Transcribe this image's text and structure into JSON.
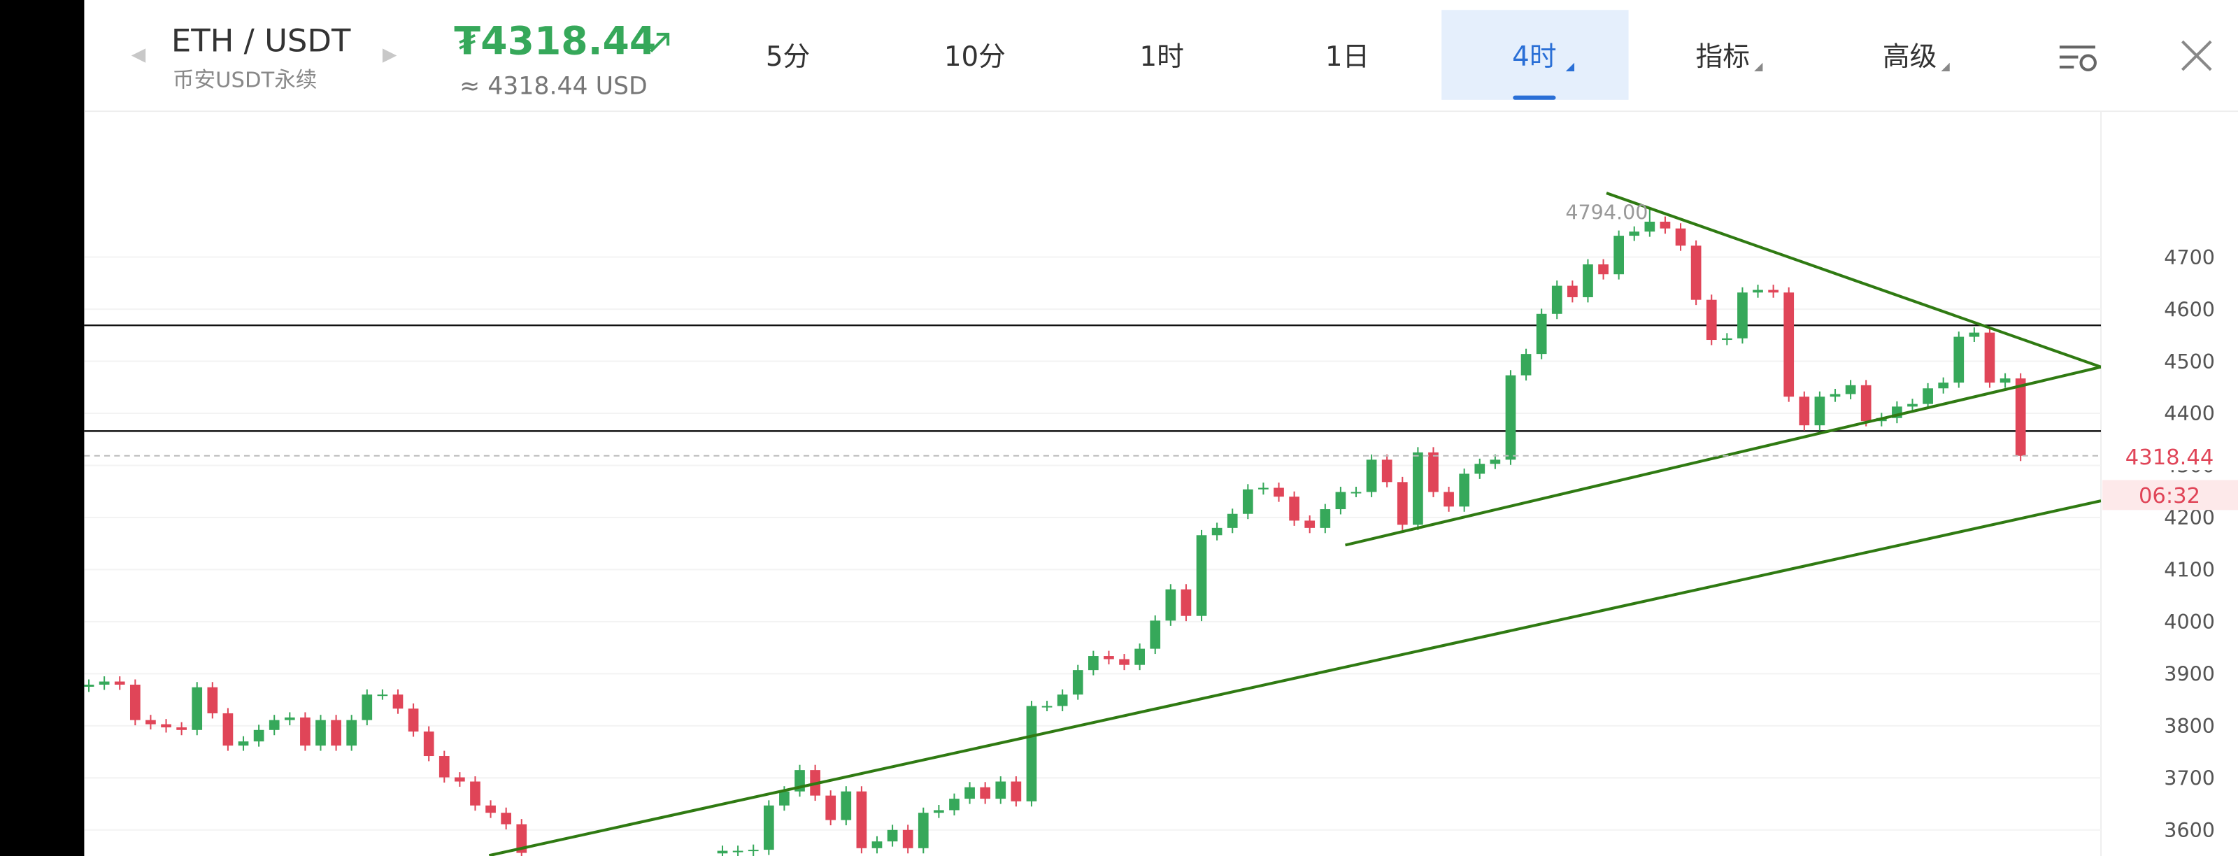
{
  "header": {
    "pair": "ETH / USDT",
    "exchange": "币安USDT永续",
    "price": "₮4318.44",
    "usd": "≈ 4318.44 USD",
    "tabs": [
      "5分",
      "10分",
      "1时",
      "1日",
      "4时",
      "指标",
      "高级"
    ],
    "selected_tab": 4
  },
  "chart_data": {
    "type": "candlestick",
    "open": [
      3875,
      3879,
      3885,
      3879,
      3811,
      3803,
      3797,
      3792,
      3874,
      3824,
      3762,
      3770,
      3792,
      3811,
      3816,
      3762,
      3811,
      3762,
      3811,
      3860,
      3860,
      3833,
      3789,
      3742,
      3701,
      3693,
      3647,
      3633,
      3611,
      null,
      null,
      null,
      null,
      null,
      null,
      null,
      null,
      null,
      null,
      null,
      null,
      3555,
      3560,
      3560,
      3562,
      3647,
      3674,
      3715,
      3666,
      3619,
      3674,
      3565,
      3578,
      3600,
      3565,
      3633,
      3638,
      3660,
      3682,
      3660,
      3693,
      3655,
      3838,
      3838,
      3860,
      3907,
      3934,
      3928,
      3917,
      3948,
      4002,
      4062,
      4011,
      4166,
      4180,
      4207,
      4254,
      4257,
      4240,
      4194,
      4180,
      4216,
      4249,
      4249,
      4311,
      4268,
      4186,
      4325,
      4249,
      4221,
      4284,
      4303,
      4311,
      4473,
      4514,
      4591,
      4645,
      4623,
      4686,
      4667,
      4741,
      4749,
      4768,
      4755,
      4722,
      4618,
      4541,
      4544,
      4632,
      4637,
      4632,
      4432,
      4377,
      4432,
      4437,
      4454,
      4385,
      4391,
      4413,
      4418,
      4448,
      4459,
      4547,
      4555,
      4459,
      4467
    ],
    "high": [
      3889,
      3895,
      3895,
      3889,
      3821,
      3813,
      3807,
      3884,
      3884,
      3834,
      3780,
      3802,
      3821,
      3826,
      3826,
      3821,
      3821,
      3821,
      3870,
      3870,
      3870,
      3843,
      3799,
      3752,
      3711,
      3703,
      3657,
      3643,
      3621,
      null,
      null,
      null,
      null,
      null,
      null,
      null,
      null,
      null,
      null,
      null,
      null,
      3570,
      3570,
      3572,
      3657,
      3684,
      3725,
      3725,
      3676,
      3684,
      3684,
      3588,
      3610,
      3610,
      3643,
      3648,
      3670,
      3692,
      3692,
      3703,
      3703,
      3848,
      3848,
      3870,
      3917,
      3944,
      3944,
      3938,
      3958,
      4012,
      4072,
      4072,
      4176,
      4190,
      4217,
      4264,
      4267,
      4267,
      4250,
      4204,
      4226,
      4259,
      4259,
      4321,
      4321,
      4278,
      4335,
      4335,
      4259,
      4294,
      4313,
      4321,
      4483,
      4524,
      4601,
      4655,
      4655,
      4696,
      4696,
      4751,
      4759,
      4794,
      4778,
      4765,
      4732,
      4628,
      4554,
      4642,
      4647,
      4647,
      4642,
      4442,
      4442,
      4447,
      4464,
      4464,
      4401,
      4423,
      4428,
      4458,
      4469,
      4557,
      4565,
      4565,
      4477,
      4477
    ],
    "low": [
      3865,
      3869,
      3869,
      3801,
      3793,
      3787,
      3782,
      3782,
      3814,
      3752,
      3752,
      3760,
      3782,
      3801,
      3752,
      3752,
      3752,
      3752,
      3801,
      3850,
      3823,
      3779,
      3732,
      3691,
      3683,
      3637,
      3623,
      3601,
      3546,
      null,
      null,
      null,
      null,
      null,
      null,
      null,
      null,
      null,
      null,
      null,
      null,
      3545,
      3550,
      3550,
      3552,
      3637,
      3664,
      3656,
      3609,
      3609,
      3555,
      3555,
      3568,
      3555,
      3555,
      3623,
      3628,
      3650,
      3650,
      3650,
      3645,
      3645,
      3828,
      3828,
      3850,
      3897,
      3918,
      3907,
      3907,
      3938,
      3992,
      4001,
      4001,
      4156,
      4170,
      4197,
      4244,
      4230,
      4184,
      4170,
      4170,
      4206,
      4239,
      4239,
      4258,
      4176,
      4176,
      4239,
      4211,
      4211,
      4274,
      4293,
      4301,
      4463,
      4504,
      4581,
      4613,
      4613,
      4657,
      4657,
      4731,
      4739,
      4745,
      4712,
      4608,
      4531,
      4531,
      4534,
      4622,
      4622,
      4422,
      4367,
      4367,
      4422,
      4427,
      4375,
      4375,
      4381,
      4403,
      4408,
      4438,
      4449,
      4537,
      4449,
      4449,
      4308.44
    ],
    "close": [
      3879,
      3885,
      3879,
      3811,
      3803,
      3797,
      3792,
      3874,
      3824,
      3762,
      3770,
      3792,
      3811,
      3816,
      3762,
      3811,
      3762,
      3811,
      3860,
      3860,
      3833,
      3789,
      3742,
      3701,
      3693,
      3647,
      3633,
      3611,
      3556,
      null,
      null,
      null,
      null,
      null,
      null,
      null,
      null,
      null,
      null,
      null,
      null,
      3560,
      3560,
      3562,
      3647,
      3674,
      3715,
      3666,
      3619,
      3674,
      3565,
      3578,
      3600,
      3565,
      3633,
      3638,
      3660,
      3682,
      3660,
      3693,
      3655,
      3838,
      3838,
      3860,
      3907,
      3934,
      3928,
      3917,
      3948,
      4002,
      4062,
      4011,
      4166,
      4180,
      4207,
      4254,
      4257,
      4240,
      4194,
      4180,
      4216,
      4249,
      4249,
      4311,
      4268,
      4186,
      4325,
      4249,
      4221,
      4284,
      4303,
      4311,
      4473,
      4514,
      4591,
      4645,
      4623,
      4686,
      4667,
      4741,
      4749,
      4768,
      4755,
      4722,
      4618,
      4541,
      4544,
      4632,
      4637,
      4632,
      4432,
      4377,
      4432,
      4437,
      4454,
      4385,
      4391,
      4413,
      4418,
      4448,
      4459,
      4547,
      4555,
      4459,
      4467,
      4318.44
    ],
    "up_color": "#36a85a",
    "down_color": "#e04558",
    "xlim": [
      -0.3,
      130.2
    ],
    "ylim": [
      3550,
      4980
    ],
    "yticks": [
      3600,
      3700,
      3800,
      3900,
      4000,
      4100,
      4200,
      4300,
      4400,
      4500,
      4600,
      4700
    ],
    "grid": true,
    "high_label": "4794.00",
    "high_index": 102,
    "countdown": "06:32",
    "hlines": [
      4569,
      4366
    ],
    "trendlines": [
      {
        "x": [
          98.2,
          130.2
        ],
        "y": [
          4823,
          4489
        ]
      },
      {
        "x": [
          81.3,
          130.2
        ],
        "y": [
          4147,
          4489
        ]
      },
      {
        "x": [
          25.9,
          130.2
        ],
        "y": [
          3551,
          4232
        ]
      }
    ],
    "trend_color": "#2f7a12"
  }
}
